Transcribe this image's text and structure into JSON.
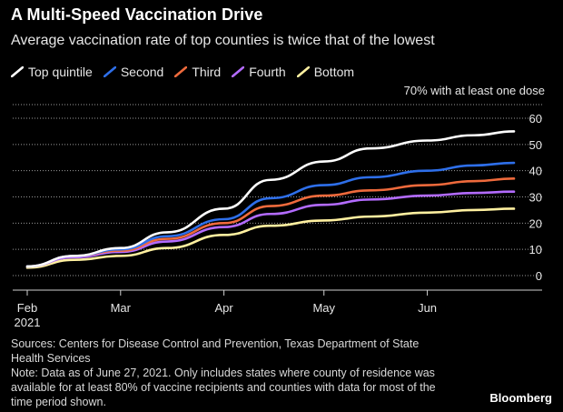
{
  "title": "A Multi-Speed Vaccination Drive",
  "subtitle": "Average vaccination rate of top counties is twice that of the lowest",
  "annotation": "70% with at least one dose",
  "sources": "Sources: Centers for Disease Control and Prevention, Texas Department of State Health Services",
  "note": "Note: Data as of June 27, 2021. Only includes states where county of residence was available for at least 80% of vaccine recipients and counties with data for most of the time period shown.",
  "brand": "Bloomberg",
  "chart_data": {
    "type": "line",
    "title": "A Multi-Speed Vaccination Drive",
    "subtitle": "Average vaccination rate of top counties is twice that of the lowest",
    "xlabel": "",
    "ylabel": "",
    "x_ticks": [
      "Feb",
      "Mar",
      "Apr",
      "May",
      "Jun"
    ],
    "x_sub_label": "2021",
    "y_ticks": [
      0,
      10,
      20,
      30,
      40,
      50,
      60
    ],
    "ylim": [
      -3,
      70
    ],
    "grid": true,
    "legend_position": "top-left",
    "x": [
      "2021-02-01",
      "2021-02-15",
      "2021-03-01",
      "2021-03-15",
      "2021-04-01",
      "2021-04-15",
      "2021-05-01",
      "2021-05-15",
      "2021-06-01",
      "2021-06-15",
      "2021-06-27"
    ],
    "series": [
      {
        "name": "Top quintile",
        "color": "#ffffff",
        "values": [
          3.5,
          7.5,
          10.5,
          16.5,
          25.5,
          36.5,
          43.5,
          48.5,
          51.5,
          53.5,
          55.0
        ]
      },
      {
        "name": "Second",
        "color": "#2e6fea",
        "values": [
          3.5,
          7.5,
          10.0,
          15.0,
          21.5,
          29.5,
          34.5,
          37.5,
          40.0,
          42.0,
          43.0
        ]
      },
      {
        "name": "Third",
        "color": "#ef6a3c",
        "values": [
          3.5,
          7.5,
          9.5,
          14.0,
          20.0,
          26.5,
          30.5,
          32.5,
          34.5,
          36.0,
          37.0
        ]
      },
      {
        "name": "Fourth",
        "color": "#b36bff",
        "values": [
          3.5,
          7.0,
          9.0,
          13.0,
          18.5,
          23.5,
          27.0,
          29.0,
          30.5,
          31.5,
          32.0
        ]
      },
      {
        "name": "Bottom",
        "color": "#fff0a0",
        "values": [
          3.0,
          6.0,
          7.5,
          10.5,
          15.5,
          19.0,
          21.0,
          22.5,
          24.0,
          25.0,
          25.5
        ]
      }
    ]
  }
}
